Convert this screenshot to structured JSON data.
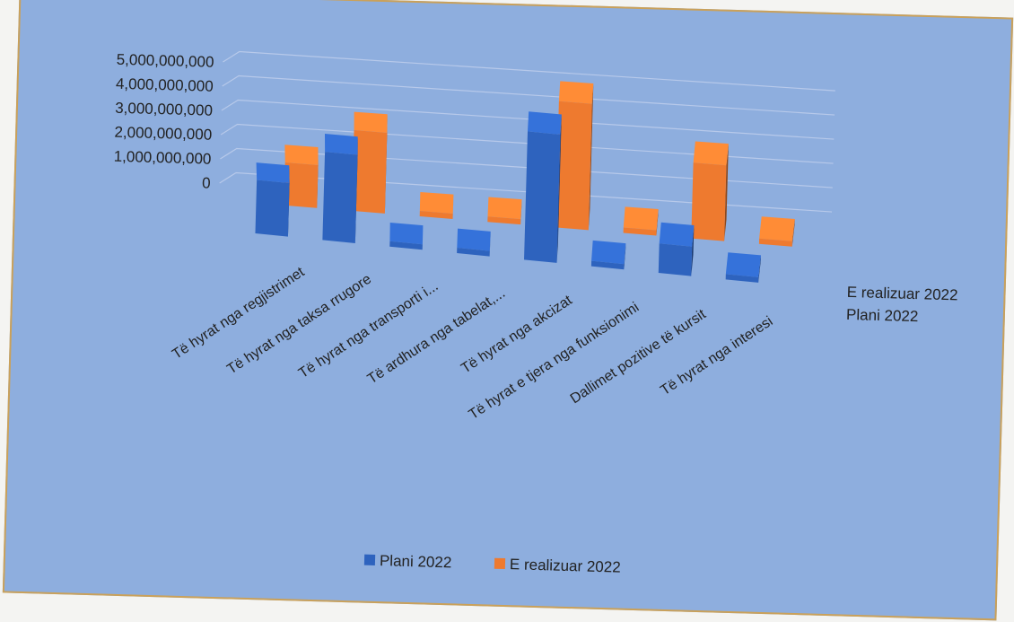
{
  "chart_data": {
    "type": "bar",
    "style": "3d-column",
    "categories": [
      "Të hyrat nga regjistrimet",
      "Të hyrat nga taksa rrugore",
      "Të hyrat nga transporti i...",
      "Të ardhura nga tabelat,...",
      "Të hyrat nga akcizat",
      "Të hyrat e tjera nga funksionimi",
      "Dallimet pozitive të kursit",
      "Të hyrat nga interesi"
    ],
    "series": [
      {
        "name": "Plani 2022",
        "color": "#2e63be",
        "values": [
          2000000000,
          3300000000,
          20000000,
          10000000,
          4800000000,
          5000000,
          1100000000,
          10000000
        ]
      },
      {
        "name": "E realizuar 2022",
        "color": "#ee7a2f",
        "values": [
          1700000000,
          3200000000,
          60000000,
          70000000,
          5000000000,
          200000000,
          3000000000,
          150000000
        ]
      }
    ],
    "yticks": [
      "0",
      "1,000,000,000",
      "2,000,000,000",
      "3,000,000,000",
      "4,000,000,000",
      "5,000,000,000"
    ],
    "ylim": [
      0,
      5000000000
    ],
    "grid": true,
    "legend_position": "bottom",
    "title": "",
    "xlabel": "",
    "ylabel": ""
  }
}
